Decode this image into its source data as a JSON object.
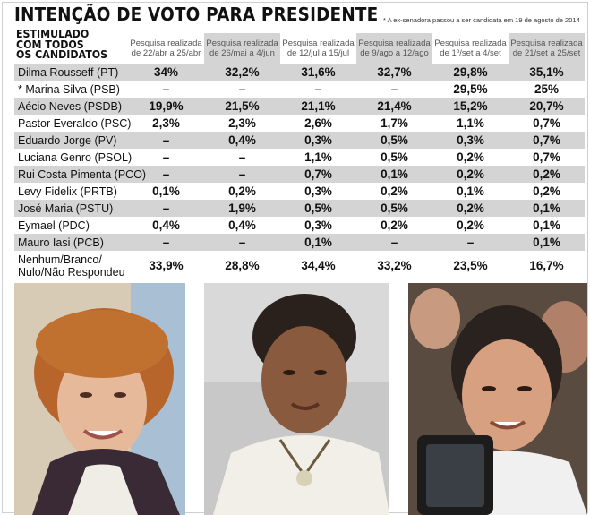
{
  "header": {
    "title": "INTENÇÃO DE VOTO PARA PRESIDENTE",
    "note": "* A ex-senadora passou a ser candidata em 19 de agosto de 2014",
    "stimulated": [
      "ESTIMULADO",
      "COM TODOS",
      "OS CANDIDATOS"
    ]
  },
  "columns": [
    "Pesquisa realizada de 22/abr a 25/abr",
    "Pesquisa realizada de 26/mai a 4/jun",
    "Pesquisa realizada de 12/jul a 15/jul",
    "Pesquisa realizada de 9/ago a 12/ago",
    "Pesquisa realizada de 1º/set a 4/set",
    "Pesquisa realizada de 21/set a 25/set"
  ],
  "rows": [
    {
      "name": "Dilma Rousseff (PT)",
      "values": [
        "34%",
        "32,2%",
        "31,6%",
        "32,7%",
        "29,8%",
        "35,1%"
      ]
    },
    {
      "name": "* Marina Silva (PSB)",
      "values": [
        "–",
        "–",
        "–",
        "–",
        "29,5%",
        "25%"
      ]
    },
    {
      "name": "Aécio Neves (PSDB)",
      "values": [
        "19,9%",
        "21,5%",
        "21,1%",
        "21,4%",
        "15,2%",
        "20,7%"
      ]
    },
    {
      "name": "Pastor Everaldo (PSC)",
      "values": [
        "2,3%",
        "2,3%",
        "2,6%",
        "1,7%",
        "1,1%",
        "0,7%"
      ]
    },
    {
      "name": "Eduardo Jorge (PV)",
      "values": [
        "–",
        "0,4%",
        "0,3%",
        "0,5%",
        "0,3%",
        "0,7%"
      ]
    },
    {
      "name": "Luciana Genro (PSOL)",
      "values": [
        "–",
        "–",
        "1,1%",
        "0,5%",
        "0,2%",
        "0,7%"
      ]
    },
    {
      "name": "Rui Costa Pimenta (PCO)",
      "values": [
        "–",
        "–",
        "0,7%",
        "0,1%",
        "0,2%",
        "0,2%"
      ]
    },
    {
      "name": "Levy Fidelix (PRTB)",
      "values": [
        "0,1%",
        "0,2%",
        "0,3%",
        "0,2%",
        "0,1%",
        "0,2%"
      ]
    },
    {
      "name": "José Maria (PSTU)",
      "values": [
        "–",
        "1,9%",
        "0,5%",
        "0,5%",
        "0,2%",
        "0,1%"
      ]
    },
    {
      "name": "Eymael (PDC)",
      "values": [
        "0,4%",
        "0,4%",
        "0,3%",
        "0,2%",
        "0,2%",
        "0,1%"
      ]
    },
    {
      "name": "Mauro Iasi (PCB)",
      "values": [
        "–",
        "–",
        "0,1%",
        "–",
        "–",
        "0,1%"
      ]
    }
  ],
  "last_row": {
    "name_lines": [
      "Nenhum/Branco/",
      "Nulo/Não Respondeu"
    ],
    "values": [
      "33,9%",
      "28,8%",
      "34,4%",
      "33,2%",
      "23,5%",
      "16,7%"
    ]
  },
  "photos": [
    {
      "subject": "dilma-rousseff-photo"
    },
    {
      "subject": "marina-silva-photo"
    },
    {
      "subject": "aecio-neves-photo"
    }
  ],
  "colors": {
    "shade": "#d4d4d4",
    "text": "#111111",
    "header_text": "#555555"
  }
}
